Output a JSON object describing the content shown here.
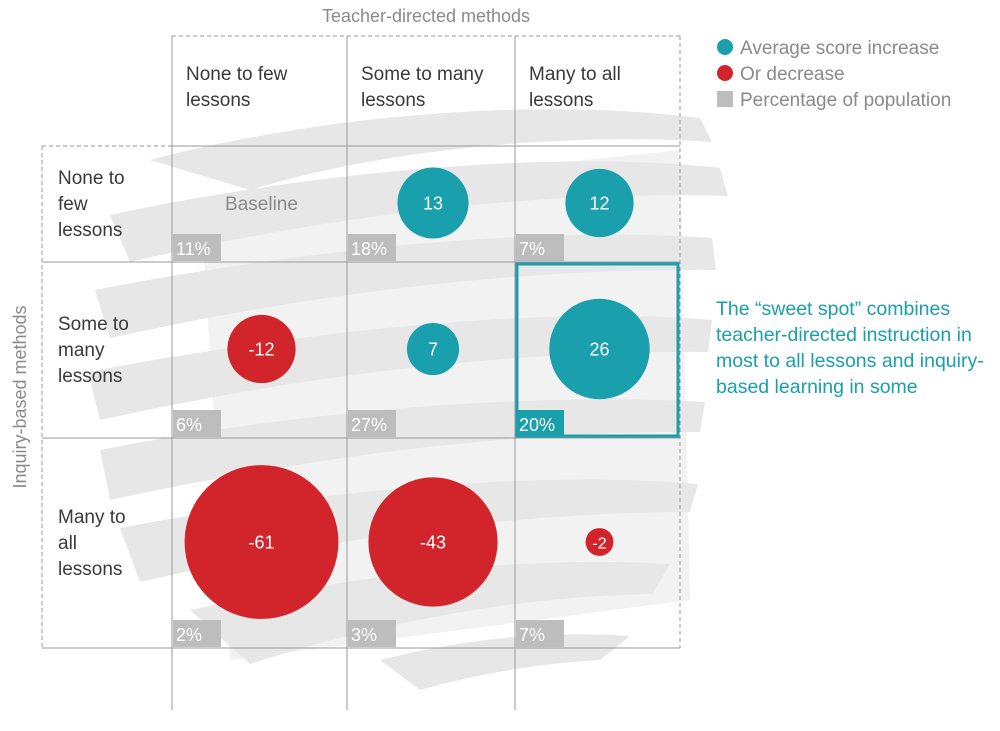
{
  "chart_data": {
    "type": "bubble-matrix",
    "title": "",
    "xlabel": "Teacher-directed methods",
    "ylabel": "Inquiry-based methods",
    "columns": [
      "None to few lessons",
      "Some to many lessons",
      "Many to all lessons"
    ],
    "rows": [
      "None to few lessons",
      "Some to many lessons",
      "Many to all lessons"
    ],
    "cells": [
      [
        {
          "value": null,
          "label": "Baseline",
          "population": "11%"
        },
        {
          "value": 13,
          "label": "13",
          "population": "18%"
        },
        {
          "value": 12,
          "label": "12",
          "population": "7%"
        }
      ],
      [
        {
          "value": -12,
          "label": "-12",
          "population": "6%"
        },
        {
          "value": 7,
          "label": "7",
          "population": "27%"
        },
        {
          "value": 26,
          "label": "26",
          "population": "20%",
          "highlighted": true
        }
      ],
      [
        {
          "value": -61,
          "label": "-61",
          "population": "2%"
        },
        {
          "value": -43,
          "label": "-43",
          "population": "3%"
        },
        {
          "value": -2,
          "label": "-2",
          "population": "7%"
        }
      ]
    ],
    "legend": {
      "placement": "top-right",
      "items": [
        {
          "label": "Average score increase",
          "shape": "circle",
          "color": "#1a9fad"
        },
        {
          "label": "Or decrease",
          "shape": "circle",
          "color": "#d1252b"
        },
        {
          "label": "Percentage of population",
          "shape": "square",
          "color": "#bdbdbd"
        }
      ]
    },
    "colors": {
      "increase": "#1a9fad",
      "decrease": "#d1252b",
      "population": "#bdbdbd",
      "highlight": "#1a9fad",
      "text_gray": "#8a8a8a",
      "label_dark": "#3a3a3a"
    }
  },
  "annotation": "The “sweet spot” combines teacher-directed instruction in most to all lessons and inquiry-based learning in some"
}
